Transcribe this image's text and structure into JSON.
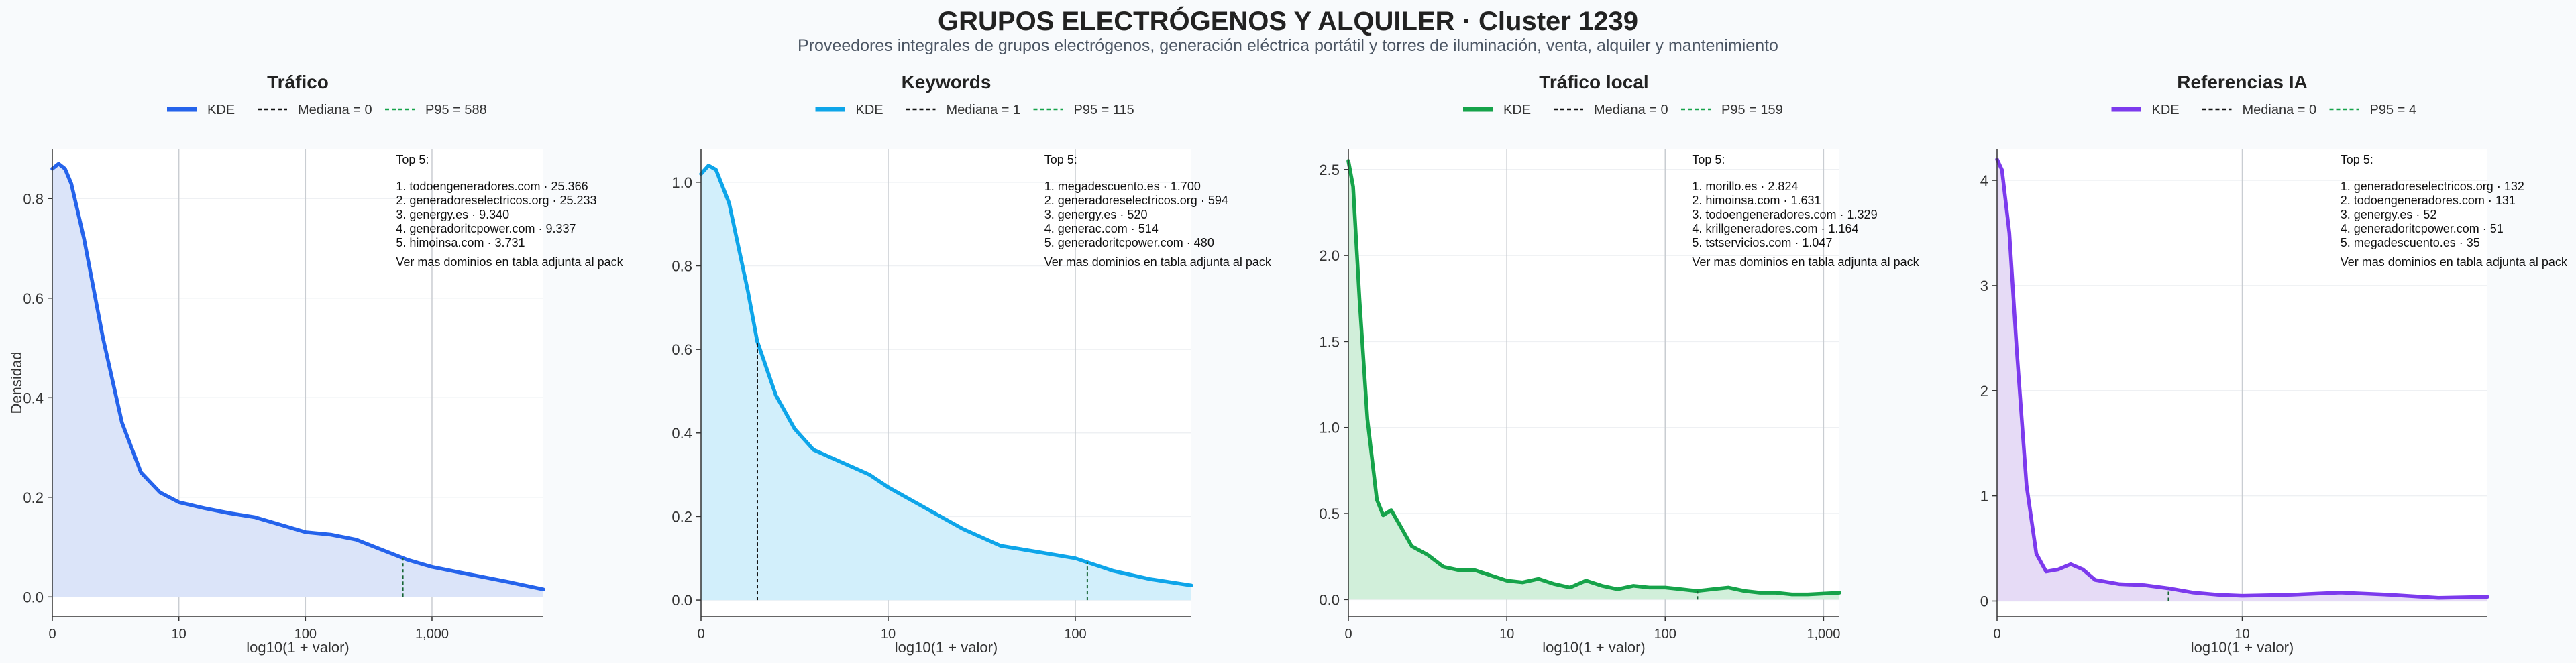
{
  "header": {
    "title": "GRUPOS ELECTRÓGENOS Y ALQUILER · Cluster 1239",
    "subtitle": "Proveedores integrales de grupos electrógenos, generación eléctrica portátil y torres de iluminación, venta, alquiler y mantenimiento"
  },
  "chart_data": [
    {
      "type": "area",
      "title": "Tráfico",
      "color": "#2563eb",
      "fill": "#dbe4f9",
      "xlabel": "log10(1 + valor)",
      "ylabel": "Densidad",
      "xscale": "log10(1+x)",
      "xlim": [
        0,
        3.88
      ],
      "ylim": [
        -0.04,
        0.9
      ],
      "xticks": [
        {
          "pos": 0,
          "label": "0"
        },
        {
          "pos": 1,
          "label": "10"
        },
        {
          "pos": 2,
          "label": "100"
        },
        {
          "pos": 3,
          "label": "1,000"
        }
      ],
      "yticks": [
        {
          "pos": 0,
          "label": "0.0"
        },
        {
          "pos": 0.2,
          "label": "0.2"
        },
        {
          "pos": 0.4,
          "label": "0.4"
        },
        {
          "pos": 0.6,
          "label": "0.6"
        },
        {
          "pos": 0.8,
          "label": "0.8"
        }
      ],
      "series": [
        {
          "x": [
            0,
            0.05,
            0.1,
            0.15,
            0.25,
            0.4,
            0.55,
            0.7,
            0.85,
            1.0,
            1.2,
            1.4,
            1.6,
            1.8,
            2.0,
            2.2,
            2.4,
            2.6,
            2.8,
            3.0,
            3.2,
            3.4,
            3.6,
            3.88
          ],
          "y": [
            0.86,
            0.87,
            0.86,
            0.83,
            0.72,
            0.52,
            0.35,
            0.25,
            0.21,
            0.19,
            0.178,
            0.168,
            0.16,
            0.145,
            0.13,
            0.125,
            0.115,
            0.095,
            0.075,
            0.06,
            0.05,
            0.04,
            0.03,
            0.015
          ]
        }
      ],
      "legend": [
        "KDE",
        "Mediana = 0",
        "P95 = 588"
      ],
      "median": 0,
      "p95": 588,
      "p95_log": 2.77,
      "top5_title": "Top 5:",
      "top5": [
        "1. todoengeneradores.com · 25.366",
        "2. generadoreselectricos.org · 25.233",
        "3. genergy.es · 9.340",
        "4. generadoritcpower.com · 9.337",
        "5. himoinsa.com · 3.731"
      ],
      "footnote": "Ver mas dominios en tabla adjunta al pack"
    },
    {
      "type": "area",
      "title": "Keywords",
      "color": "#0ea5e9",
      "fill": "#d2effb",
      "xlabel": "log10(1 + valor)",
      "ylabel": "",
      "xscale": "log10(1+x)",
      "xlim": [
        0,
        2.62
      ],
      "ylim": [
        -0.04,
        1.08
      ],
      "xticks": [
        {
          "pos": 0,
          "label": "0"
        },
        {
          "pos": 1,
          "label": "10"
        },
        {
          "pos": 2,
          "label": "100"
        }
      ],
      "yticks": [
        {
          "pos": 0,
          "label": "0.0"
        },
        {
          "pos": 0.2,
          "label": "0.2"
        },
        {
          "pos": 0.4,
          "label": "0.4"
        },
        {
          "pos": 0.6,
          "label": "0.6"
        },
        {
          "pos": 0.8,
          "label": "0.8"
        },
        {
          "pos": 1.0,
          "label": "1.0"
        }
      ],
      "series": [
        {
          "x": [
            0,
            0.04,
            0.08,
            0.15,
            0.25,
            0.3,
            0.4,
            0.5,
            0.6,
            0.7,
            0.8,
            0.9,
            1.0,
            1.2,
            1.4,
            1.6,
            1.8,
            2.0,
            2.2,
            2.4,
            2.62
          ],
          "y": [
            1.02,
            1.04,
            1.03,
            0.95,
            0.74,
            0.62,
            0.49,
            0.41,
            0.36,
            0.34,
            0.32,
            0.3,
            0.27,
            0.22,
            0.17,
            0.13,
            0.115,
            0.1,
            0.07,
            0.05,
            0.035
          ]
        }
      ],
      "legend": [
        "KDE",
        "Mediana = 1",
        "P95 = 115"
      ],
      "median": 1,
      "p95": 115,
      "median_log": 0.301,
      "p95_log": 2.064,
      "top5_title": "Top 5:",
      "top5": [
        "1. megadescuento.es · 1.700",
        "2. generadoreselectricos.org · 594",
        "3. genergy.es · 520",
        "4. generac.com · 514",
        "5. generadoritcpower.com · 480"
      ],
      "footnote": "Ver mas dominios en tabla adjunta al pack"
    },
    {
      "type": "area",
      "title": "Tráfico local",
      "color": "#16a34a",
      "fill": "#d1efda",
      "xlabel": "log10(1 + valor)",
      "ylabel": "",
      "xscale": "log10(1+x)",
      "xlim": [
        0,
        3.1
      ],
      "ylim": [
        -0.1,
        2.62
      ],
      "xticks": [
        {
          "pos": 0,
          "label": "0"
        },
        {
          "pos": 1,
          "label": "10"
        },
        {
          "pos": 2,
          "label": "100"
        },
        {
          "pos": 3,
          "label": "1,000"
        }
      ],
      "yticks": [
        {
          "pos": 0,
          "label": "0.0"
        },
        {
          "pos": 0.5,
          "label": "0.5"
        },
        {
          "pos": 1.0,
          "label": "1.0"
        },
        {
          "pos": 1.5,
          "label": "1.5"
        },
        {
          "pos": 2.0,
          "label": "2.0"
        },
        {
          "pos": 2.5,
          "label": "2.5"
        }
      ],
      "series": [
        {
          "x": [
            0,
            0.03,
            0.07,
            0.12,
            0.18,
            0.22,
            0.27,
            0.32,
            0.4,
            0.5,
            0.6,
            0.7,
            0.8,
            0.9,
            1.0,
            1.1,
            1.2,
            1.3,
            1.4,
            1.5,
            1.6,
            1.7,
            1.8,
            1.9,
            2.0,
            2.1,
            2.2,
            2.3,
            2.4,
            2.5,
            2.6,
            2.7,
            2.8,
            2.9,
            3.1
          ],
          "y": [
            2.55,
            2.4,
            1.75,
            1.05,
            0.58,
            0.49,
            0.52,
            0.44,
            0.31,
            0.26,
            0.19,
            0.17,
            0.17,
            0.14,
            0.11,
            0.1,
            0.12,
            0.09,
            0.07,
            0.11,
            0.08,
            0.06,
            0.08,
            0.07,
            0.07,
            0.06,
            0.05,
            0.06,
            0.07,
            0.05,
            0.04,
            0.04,
            0.03,
            0.03,
            0.04
          ]
        }
      ],
      "legend": [
        "KDE",
        "Mediana = 0",
        "P95 = 159"
      ],
      "median": 0,
      "p95": 159,
      "p95_log": 2.204,
      "top5_title": "Top 5:",
      "top5": [
        "1. morillo.es · 2.824",
        "2. himoinsa.com · 1.631",
        "3. todoengeneradores.com · 1.329",
        "4. krillgeneradores.com · 1.164",
        "5. tstservicios.com · 1.047"
      ],
      "footnote": "Ver mas dominios en tabla adjunta al pack"
    },
    {
      "type": "area",
      "title": "Referencias IA",
      "color": "#7c3aed",
      "fill": "#e6dbf6",
      "xlabel": "log10(1 + valor)",
      "ylabel": "",
      "xscale": "log10(1+x)",
      "xlim": [
        0,
        2.0
      ],
      "ylim": [
        -0.15,
        4.3
      ],
      "xticks": [
        {
          "pos": 0,
          "label": "0"
        },
        {
          "pos": 1,
          "label": "10"
        }
      ],
      "yticks": [
        {
          "pos": 0,
          "label": "0"
        },
        {
          "pos": 1,
          "label": "1"
        },
        {
          "pos": 2,
          "label": "2"
        },
        {
          "pos": 3,
          "label": "3"
        },
        {
          "pos": 4,
          "label": "4"
        }
      ],
      "series": [
        {
          "x": [
            0,
            0.02,
            0.05,
            0.08,
            0.12,
            0.16,
            0.2,
            0.25,
            0.3,
            0.35,
            0.4,
            0.5,
            0.6,
            0.7,
            0.8,
            0.9,
            1.0,
            1.2,
            1.4,
            1.6,
            1.8,
            2.0
          ],
          "y": [
            4.2,
            4.1,
            3.5,
            2.4,
            1.1,
            0.45,
            0.28,
            0.3,
            0.35,
            0.3,
            0.2,
            0.16,
            0.15,
            0.12,
            0.08,
            0.06,
            0.05,
            0.06,
            0.08,
            0.06,
            0.03,
            0.04
          ]
        }
      ],
      "legend": [
        "KDE",
        "Mediana = 0",
        "P95 = 4"
      ],
      "median": 0,
      "p95": 4,
      "p95_log": 0.699,
      "top5_title": "Top 5:",
      "top5": [
        "1. generadoreselectricos.org · 132",
        "2. todoengeneradores.com · 131",
        "3. genergy.es · 52",
        "4. generadoritcpower.com · 51",
        "5. megadescuento.es · 35"
      ],
      "footnote": "Ver mas dominios en tabla adjunta al pack"
    }
  ]
}
